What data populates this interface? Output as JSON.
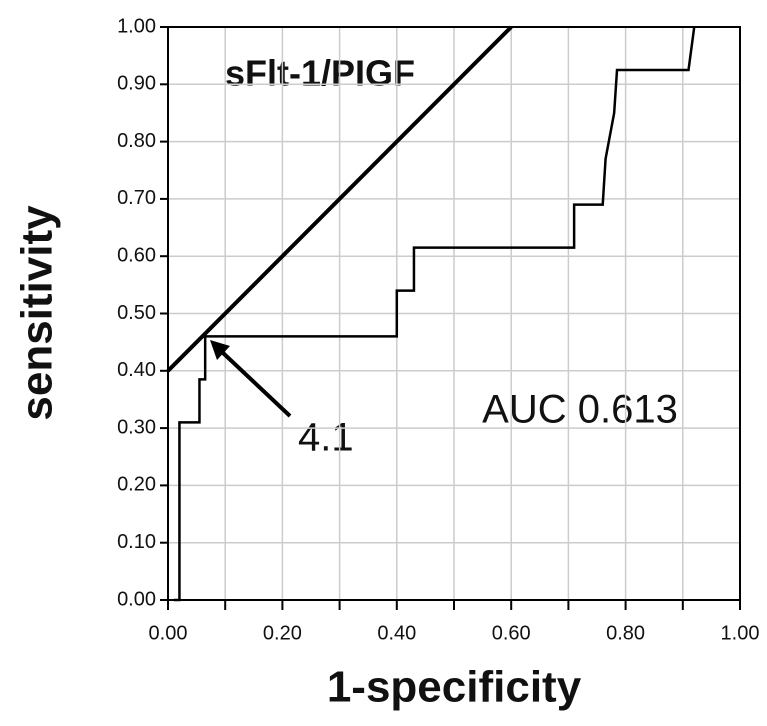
{
  "chart_data": {
    "type": "roc",
    "title": "sFlt-1/PIGF",
    "x_label": "1-specificity",
    "y_label": "sensitivity",
    "annotations": [
      "4.1",
      "AUC 0.613"
    ],
    "roc": {
      "color": "#000000",
      "x": [
        0.01,
        0.02,
        0.02,
        0.055,
        0.055,
        0.065,
        0.065,
        0.4,
        0.4,
        0.43,
        0.43,
        0.71,
        0.71,
        0.76,
        0.765,
        0.78,
        0.785,
        0.91,
        0.92
      ],
      "y": [
        0,
        0,
        0.31,
        0.31,
        0.385,
        0.385,
        0.46,
        0.46,
        0.54,
        0.54,
        0.615,
        0.615,
        0.69,
        0.69,
        0.77,
        0.85,
        0.925,
        0.925,
        1.0
      ]
    },
    "tangent": {
      "color": "#000000",
      "x": [
        0,
        0.6
      ],
      "y": [
        0.4,
        1.0
      ]
    },
    "xlim": [
      0,
      1
    ],
    "ylim": [
      0,
      1
    ],
    "xticks": [
      {
        "value": 0,
        "label": "0.00"
      },
      {
        "value": 0.2,
        "label": "0.20"
      },
      {
        "value": 0.4,
        "label": "0.40"
      },
      {
        "value": 0.6,
        "label": "0.60"
      },
      {
        "value": 0.8,
        "label": "0.80"
      },
      {
        "value": 1,
        "label": "1.00"
      }
    ],
    "xminor": [
      0.1,
      0.3,
      0.5,
      0.7,
      0.9
    ],
    "yticks": [
      {
        "value": 0,
        "label": "0.00"
      },
      {
        "value": 0.1,
        "label": "0.10"
      },
      {
        "value": 0.2,
        "label": "0.20"
      },
      {
        "value": 0.3,
        "label": "0.30"
      },
      {
        "value": 0.4,
        "label": "0.40"
      },
      {
        "value": 0.5,
        "label": "0.50"
      },
      {
        "value": 0.6,
        "label": "0.60"
      },
      {
        "value": 0.7,
        "label": "0.70"
      },
      {
        "value": 0.8,
        "label": "0.80"
      },
      {
        "value": 0.9,
        "label": "0.90"
      },
      {
        "value": 1,
        "label": "1.00"
      }
    ],
    "grid": true
  }
}
